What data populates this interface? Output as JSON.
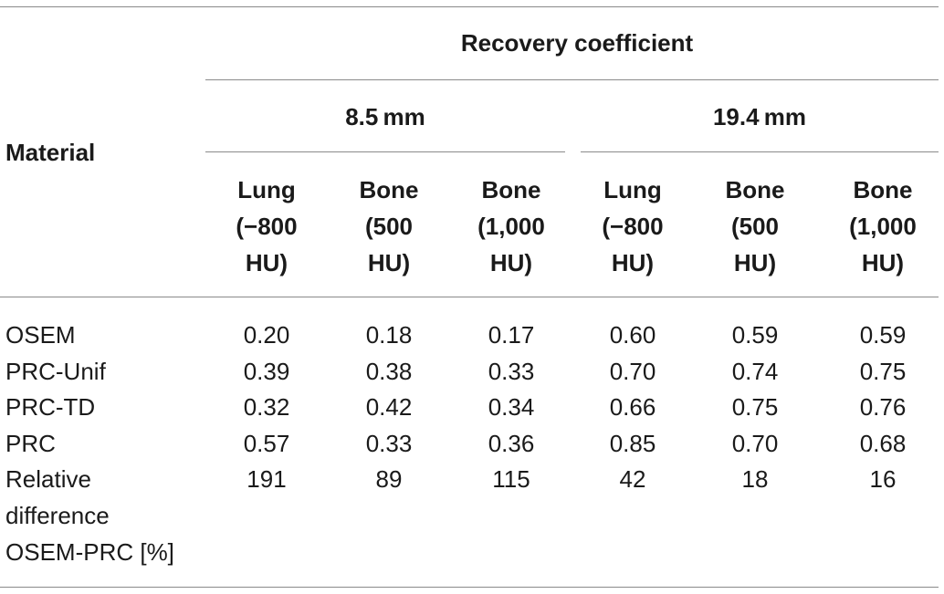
{
  "table": {
    "group_header": "Recovery coefficient",
    "row_header": "Material",
    "size_groups": [
      "8.5 mm",
      "19.4 mm"
    ],
    "columns": [
      [
        "Lung",
        "(−800",
        "HU)"
      ],
      [
        "Bone",
        "(500",
        "HU)"
      ],
      [
        "Bone",
        "(1,000",
        "HU)"
      ],
      [
        "Lung",
        "(−800",
        "HU)"
      ],
      [
        "Bone",
        "(500",
        "HU)"
      ],
      [
        "Bone",
        "(1,000",
        "HU)"
      ]
    ],
    "rows": [
      {
        "label": [
          "OSEM"
        ],
        "values": [
          "0.20",
          "0.18",
          "0.17",
          "0.60",
          "0.59",
          "0.59"
        ]
      },
      {
        "label": [
          "PRC-Unif"
        ],
        "values": [
          "0.39",
          "0.38",
          "0.33",
          "0.70",
          "0.74",
          "0.75"
        ]
      },
      {
        "label": [
          "PRC-TD"
        ],
        "values": [
          "0.32",
          "0.42",
          "0.34",
          "0.66",
          "0.75",
          "0.76"
        ]
      },
      {
        "label": [
          "PRC"
        ],
        "values": [
          "0.57",
          "0.33",
          "0.36",
          "0.85",
          "0.70",
          "0.68"
        ]
      },
      {
        "label": [
          "Relative",
          "difference",
          "OSEM-PRC [%]"
        ],
        "values": [
          "191",
          "89",
          "115",
          "42",
          "18",
          "16"
        ]
      }
    ]
  }
}
